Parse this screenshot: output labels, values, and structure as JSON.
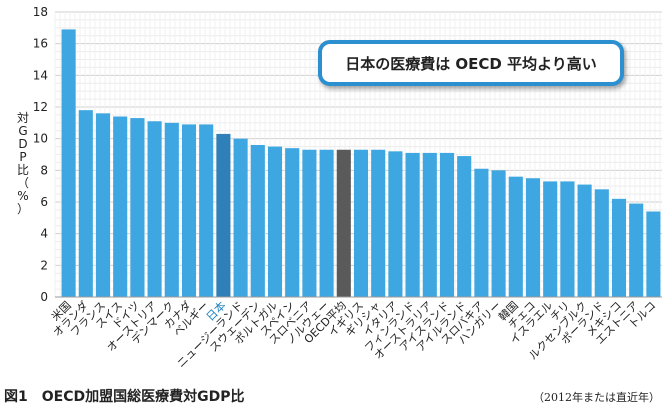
{
  "chart_data": {
    "type": "bar",
    "ylabel": "対GDP比（%）",
    "ylim": [
      0,
      18
    ],
    "yticks": [
      0,
      2,
      4,
      6,
      8,
      10,
      12,
      14,
      16,
      18
    ],
    "grid": true,
    "categories": [
      "米国",
      "オランダ",
      "フランス",
      "スイス",
      "ドイツ",
      "オーストリア",
      "デンマーク",
      "カナダ",
      "ベルギー",
      "日本",
      "ニュージーランド",
      "スウェーデン",
      "ポルトガル",
      "スペイン",
      "スロベニア",
      "ノルウェー",
      "OECD平均",
      "イギリス",
      "ギリシャ",
      "イタリア",
      "フィンランド",
      "オーストラリア",
      "アイスランド",
      "アイルランド",
      "スロバキア",
      "ハンガリー",
      "韓国",
      "チェコ",
      "イスラエル",
      "チリ",
      "ルクセンブルク",
      "ポーランド",
      "メキシコ",
      "エストニア",
      "トルコ"
    ],
    "values": [
      16.9,
      11.8,
      11.6,
      11.4,
      11.3,
      11.1,
      11.0,
      10.9,
      10.9,
      10.3,
      10.0,
      9.6,
      9.5,
      9.4,
      9.3,
      9.3,
      9.3,
      9.3,
      9.3,
      9.2,
      9.1,
      9.1,
      9.1,
      8.9,
      8.1,
      8.0,
      7.6,
      7.5,
      7.3,
      7.3,
      7.1,
      6.8,
      6.2,
      5.9,
      5.4
    ],
    "colors": {
      "default": "#3ea6e0",
      "highlight": "#2f7fb8",
      "average": "#5a5a5a",
      "highlight_label": "#1b7fc0"
    },
    "highlight": "日本",
    "average": "OECD平均",
    "annotation": "日本の医療費は OECD 平均より高い"
  },
  "caption": "図1　OECD加盟国総医療費対GDP比",
  "note": "（2012年または直近年）"
}
